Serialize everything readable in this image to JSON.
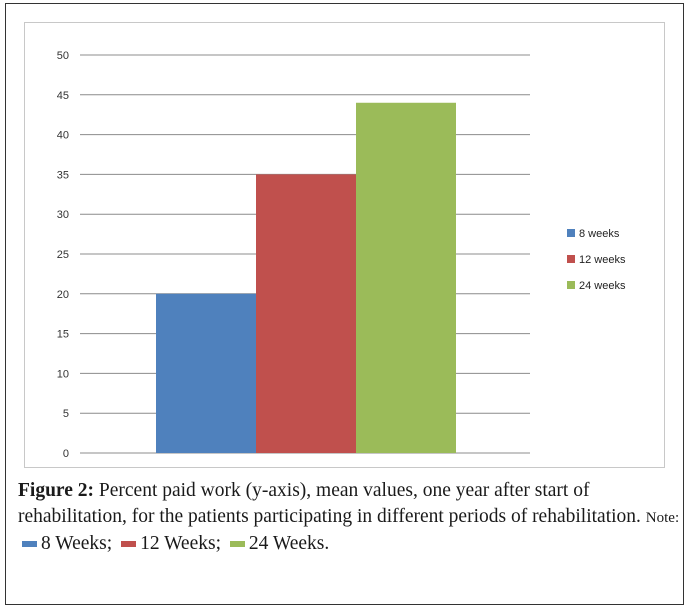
{
  "figure": {
    "label": "Figure 2:",
    "caption_text": "Percent paid work (y-axis), mean values, one year after start of rehabilitation, for the patients participating in different periods of rehabilitation.",
    "note_label": "Note:",
    "note_items": [
      {
        "label": "8 Weeks;",
        "color": "#4f81bd"
      },
      {
        "label": "12 Weeks;",
        "color": "#c0504d"
      },
      {
        "label": "24 Weeks.",
        "color": "#9bbb59"
      }
    ]
  },
  "chart_data": {
    "type": "bar",
    "title": "",
    "xlabel": "",
    "ylabel": "",
    "ylim": [
      0,
      50
    ],
    "yticks": [
      "0",
      "5",
      "10",
      "15",
      "20",
      "25",
      "30",
      "35",
      "40",
      "45",
      "50"
    ],
    "grid": true,
    "legend_position": "right",
    "series": [
      {
        "name": "8 weeks",
        "values": [
          20
        ],
        "color": "#4f81bd"
      },
      {
        "name": "12 weeks",
        "values": [
          35
        ],
        "color": "#c0504d"
      },
      {
        "name": "24 weeks",
        "values": [
          44
        ],
        "color": "#9bbb59"
      }
    ]
  }
}
